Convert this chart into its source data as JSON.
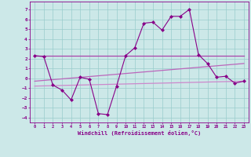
{
  "background_color": "#cce8e8",
  "grid_color": "#99cccc",
  "line_color": "#880088",
  "xlim": [
    -0.5,
    23.5
  ],
  "ylim": [
    -4.5,
    7.8
  ],
  "yticks": [
    -4,
    -3,
    -2,
    -1,
    0,
    1,
    2,
    3,
    4,
    5,
    6,
    7
  ],
  "xticks": [
    0,
    1,
    2,
    3,
    4,
    5,
    6,
    7,
    8,
    9,
    10,
    11,
    12,
    13,
    14,
    15,
    16,
    17,
    18,
    19,
    20,
    21,
    22,
    23
  ],
  "xlabel": "Windchill (Refroidissement éolien,°C)",
  "series": [
    {
      "x": [
        0,
        1,
        2,
        3,
        4,
        5,
        6,
        7,
        8,
        9,
        10,
        11,
        12,
        13,
        14,
        15,
        16,
        17,
        18,
        19,
        20,
        21,
        22,
        23
      ],
      "y": [
        2.3,
        2.2,
        -0.7,
        -1.2,
        -2.2,
        0.1,
        -0.1,
        -3.6,
        -3.7,
        -0.8,
        2.3,
        3.1,
        5.6,
        5.7,
        4.9,
        6.3,
        6.3,
        7.0,
        2.4,
        1.5,
        0.1,
        0.2,
        -0.5,
        -0.3
      ],
      "color": "#880088",
      "marker": "D",
      "markersize": 2.0,
      "linewidth": 0.8
    },
    {
      "x": [
        0,
        23
      ],
      "y": [
        2.3,
        2.3
      ],
      "color": "#aa44aa",
      "marker": null,
      "linewidth": 0.9
    },
    {
      "x": [
        0,
        23
      ],
      "y": [
        -0.3,
        1.5
      ],
      "color": "#bb66bb",
      "marker": null,
      "linewidth": 0.9
    },
    {
      "x": [
        0,
        23
      ],
      "y": [
        -0.8,
        -0.3
      ],
      "color": "#cc88cc",
      "marker": null,
      "linewidth": 0.9
    }
  ]
}
